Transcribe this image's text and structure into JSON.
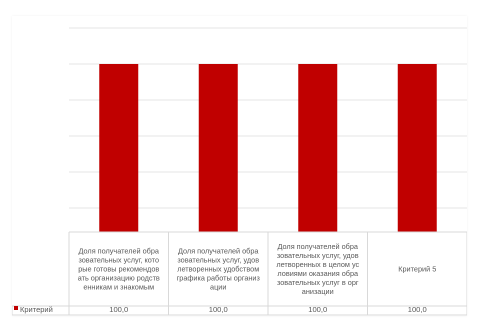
{
  "chart_data": {
    "type": "bar",
    "categories": [
      "Доля получателей образовательных услуг, которые готовы рекомендовать организацию родственникам и знакомым",
      "Доля получателей образовательных услуг, удовлетворенных удобством графика работы организации",
      "Доля получателей образовательных услуг, удовлетворенных в целом условиями оказания образовательных услуг в организации",
      "Критерий 5"
    ],
    "category_lines": [
      [
        "Доля получателей обра",
        "зовательных услуг, кото",
        "рые готовы рекомендов",
        "ать организацию родств",
        "енникам и знакомым"
      ],
      [
        "Доля получателей обра",
        "зовательных услуг, удов",
        "летворенных удобством",
        "графика работы организ",
        "ации"
      ],
      [
        "Доля получателей обра",
        "зовательных услуг, удов",
        "летворенных в целом ус",
        "ловиями оказания обра",
        "зовательных услуг в орг",
        "анизации"
      ],
      [
        "Критерий 5"
      ]
    ],
    "series": [
      {
        "name": "Критерий",
        "values": [
          100.0,
          100.0,
          100.0,
          100.0
        ],
        "labels": [
          "100,0",
          "100,0",
          "100,0",
          "100,0"
        ]
      }
    ],
    "ylim": [
      0,
      100
    ],
    "grid": true,
    "legend_position": "left-of-data-table",
    "colors": {
      "bar": "#C00000",
      "grid": "#E6E6E6",
      "table": "#D9D9D9",
      "text": "#595959"
    }
  }
}
